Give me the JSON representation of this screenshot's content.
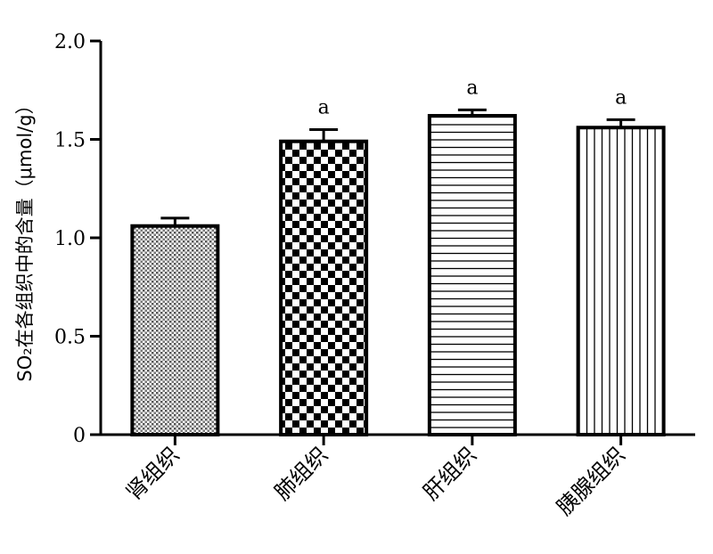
{
  "chart_data": {
    "type": "bar",
    "ylabel": "SO₂在各组织中的含量（μmol/g）",
    "xlabel": "",
    "title": "",
    "ylim": [
      0,
      2.0
    ],
    "yticks": [
      "0",
      "0.5",
      "1.0",
      "1.5",
      "2.0"
    ],
    "yticks_values": [
      0,
      0.5,
      1.0,
      1.5,
      2.0
    ],
    "categories": [
      "肾组织",
      "肺组织",
      "肝组织",
      "胰腺组织"
    ],
    "values": [
      1.06,
      1.49,
      1.62,
      1.56
    ],
    "errors": [
      0.04,
      0.06,
      0.03,
      0.04
    ],
    "significance": [
      "",
      "a",
      "a",
      "a"
    ],
    "patterns": [
      "fine-dots",
      "checker",
      "horizontal-lines",
      "vertical-lines"
    ],
    "grid": false,
    "legend": "none"
  }
}
